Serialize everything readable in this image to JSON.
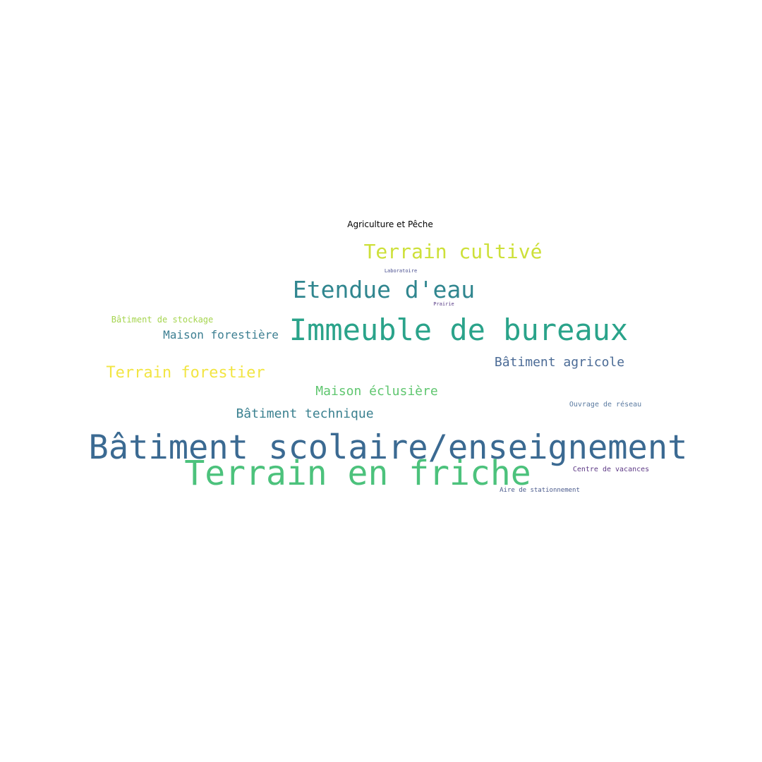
{
  "title": "Agriculture et Pêche",
  "words": {
    "batiment_scolaire": {
      "text": "Bâtiment scolaire/enseignement",
      "color": "#3b6a92"
    },
    "terrain_en_friche": {
      "text": "Terrain en friche",
      "color": "#4cc27c"
    },
    "immeuble_de_bureaux": {
      "text": "Immeuble de bureaux",
      "color": "#2aa38a"
    },
    "etendue_d_eau": {
      "text": "Etendue d'eau",
      "color": "#30868f"
    },
    "terrain_cultive": {
      "text": "Terrain cultivé",
      "color": "#cde039"
    },
    "terrain_forestier": {
      "text": "Terrain forestier",
      "color": "#f2e543"
    },
    "maison_eclusiere": {
      "text": "Maison éclusière",
      "color": "#5fc66f"
    },
    "batiment_agricole": {
      "text": "Bâtiment agricole",
      "color": "#4b6b96"
    },
    "batiment_technique": {
      "text": "Bâtiment technique",
      "color": "#3b8190"
    },
    "maison_forestiere": {
      "text": "Maison forestière",
      "color": "#3d7f92"
    },
    "batiment_de_stockage": {
      "text": "Bâtiment de stockage",
      "color": "#a6d550"
    },
    "ouvrage_de_reseau": {
      "text": "Ouvrage de réseau",
      "color": "#5a7aa0"
    },
    "centre_de_vacances": {
      "text": "Centre de vacances",
      "color": "#5e3a86"
    },
    "aire_de_stationnement": {
      "text": "Aire de stationnement",
      "color": "#4a5a8c"
    },
    "laboratoire": {
      "text": "Laboratoire",
      "color": "#4a4f90"
    },
    "prairie": {
      "text": "Prairie",
      "color": "#5a3e88"
    }
  }
}
